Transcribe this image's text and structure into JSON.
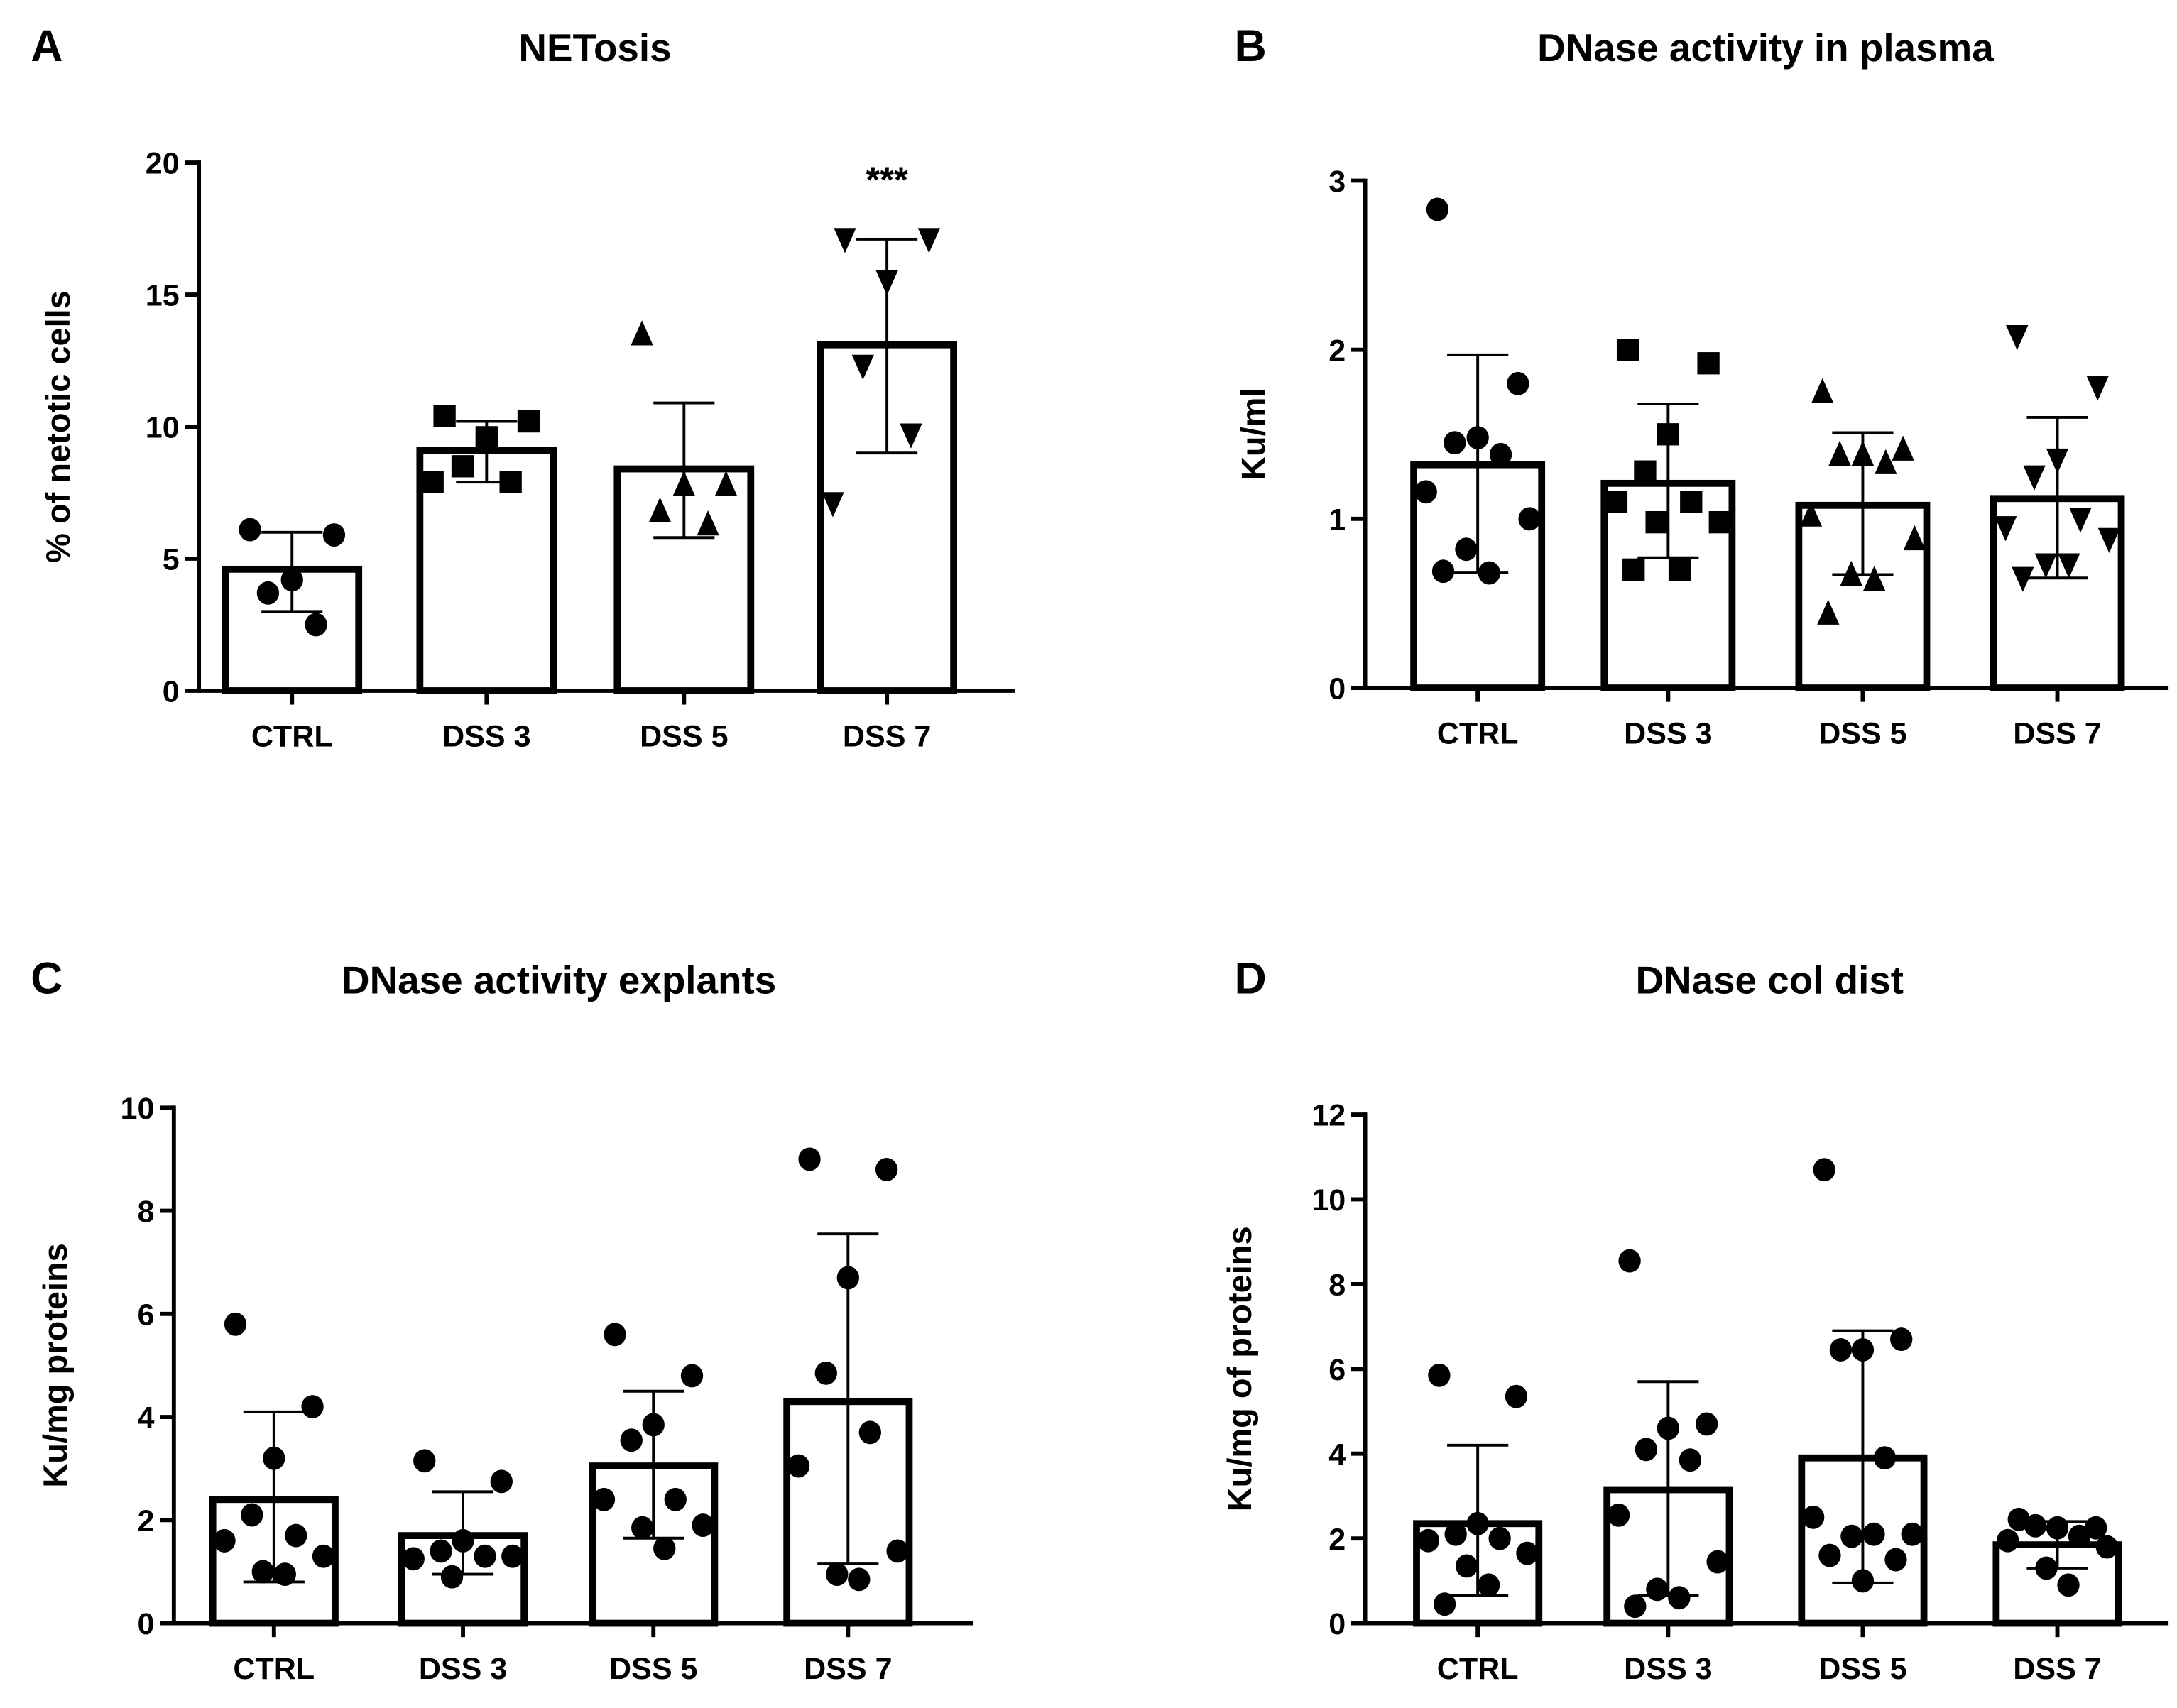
{
  "chart_data": [
    {
      "panel": "A",
      "type": "bar",
      "title": "NETosis",
      "ylabel": "% of netotic cells",
      "xlabel": "",
      "ylim": [
        0,
        20
      ],
      "yticks": [
        0,
        5,
        10,
        15,
        20
      ],
      "grid": false,
      "categories": [
        "CTRL",
        "DSS 3",
        "DSS 5",
        "DSS 7"
      ],
      "markers": [
        "circle",
        "square",
        "triangle-up",
        "triangle-down"
      ],
      "means": [
        4.6,
        9.1,
        8.4,
        13.1
      ],
      "error_low": [
        3.0,
        7.9,
        5.8,
        9.0
      ],
      "error_high": [
        6.0,
        10.2,
        10.9,
        17.1
      ],
      "points": [
        [
          6.1,
          5.9,
          4.2,
          3.7,
          2.5
        ],
        [
          10.4,
          10.2,
          9.6,
          8.5,
          7.9,
          7.9
        ],
        [
          13.5,
          7.8,
          7.8,
          6.8,
          6.3
        ],
        [
          17.1,
          17.1,
          15.5,
          12.3,
          9.7,
          7.1
        ]
      ],
      "annotations": [
        "",
        "",
        "",
        "***"
      ]
    },
    {
      "panel": "B",
      "type": "bar",
      "title": "DNase activity in plasma",
      "ylabel": "Ku/ml",
      "xlabel": "",
      "ylim": [
        0,
        3
      ],
      "yticks": [
        0,
        1,
        2,
        3
      ],
      "grid": false,
      "categories": [
        "CTRL",
        "DSS 3",
        "DSS 5",
        "DSS 7"
      ],
      "markers": [
        "circle",
        "square",
        "triangle-up",
        "triangle-down"
      ],
      "means": [
        1.32,
        1.21,
        1.08,
        1.12
      ],
      "error_low": [
        0.68,
        0.77,
        0.67,
        0.65
      ],
      "error_high": [
        1.97,
        1.68,
        1.51,
        1.6
      ],
      "points": [
        [
          2.83,
          1.8,
          1.48,
          1.45,
          1.38,
          1.16,
          1.0,
          0.82,
          0.68,
          0.69
        ],
        [
          2.0,
          1.92,
          1.5,
          1.28,
          1.1,
          1.1,
          0.98,
          0.98,
          0.7,
          0.7
        ],
        [
          1.75,
          1.41,
          1.38,
          1.38,
          1.33,
          1.02,
          0.88,
          0.67,
          0.64,
          0.44
        ],
        [
          2.08,
          1.78,
          1.35,
          1.25,
          1.0,
          0.95,
          0.88,
          0.73,
          0.73,
          0.65
        ]
      ],
      "annotations": [
        "",
        "",
        "",
        ""
      ]
    },
    {
      "panel": "C",
      "type": "bar",
      "title": "DNase activity explants",
      "ylabel": "Ku/mg proteins",
      "xlabel": "",
      "ylim": [
        0,
        10
      ],
      "yticks": [
        0,
        2,
        4,
        6,
        8,
        10
      ],
      "grid": false,
      "categories": [
        "CTRL",
        "DSS 3",
        "DSS 5",
        "DSS 7"
      ],
      "markers": [
        "circle",
        "circle",
        "circle",
        "circle"
      ],
      "means": [
        2.4,
        1.7,
        3.05,
        4.3
      ],
      "error_low": [
        0.8,
        0.95,
        1.65,
        1.15
      ],
      "error_high": [
        4.1,
        2.55,
        4.5,
        7.55
      ],
      "points": [
        [
          5.8,
          4.2,
          3.2,
          2.1,
          1.7,
          1.6,
          1.3,
          1.0,
          0.95
        ],
        [
          3.15,
          2.75,
          1.6,
          1.4,
          1.3,
          1.25,
          1.3,
          0.9
        ],
        [
          5.6,
          4.8,
          3.85,
          3.55,
          2.4,
          2.4,
          1.9,
          1.85,
          1.45
        ],
        [
          9.0,
          8.8,
          6.7,
          4.85,
          3.7,
          3.05,
          1.4,
          0.95,
          0.85
        ]
      ],
      "annotations": [
        "",
        "",
        "",
        ""
      ]
    },
    {
      "panel": "D",
      "type": "bar",
      "title": "DNase col dist",
      "ylabel": "Ku/mg of proteins",
      "xlabel": "",
      "ylim": [
        0,
        12
      ],
      "yticks": [
        0,
        2,
        4,
        6,
        8,
        10,
        12
      ],
      "grid": false,
      "categories": [
        "CTRL",
        "DSS 3",
        "DSS 5",
        "DSS 7"
      ],
      "markers": [
        "circle",
        "circle",
        "circle",
        "circle"
      ],
      "means": [
        2.35,
        3.15,
        3.9,
        1.85
      ],
      "error_low": [
        0.65,
        0.65,
        0.95,
        1.3
      ],
      "error_high": [
        4.2,
        5.7,
        6.9,
        2.4
      ],
      "points": [
        [
          5.85,
          5.35,
          2.35,
          2.1,
          2.0,
          1.95,
          1.65,
          1.35,
          0.9,
          0.45
        ],
        [
          8.55,
          4.7,
          4.6,
          4.1,
          3.85,
          2.55,
          1.45,
          0.8,
          0.6,
          0.4
        ],
        [
          10.7,
          6.7,
          6.45,
          6.45,
          3.9,
          2.5,
          2.1,
          2.05,
          2.1,
          1.6,
          1.5,
          1.0
        ],
        [
          2.45,
          2.25,
          2.25,
          2.3,
          2.05,
          1.95,
          1.8,
          1.3,
          0.9
        ]
      ],
      "annotations": [
        "",
        "",
        "",
        ""
      ]
    }
  ]
}
